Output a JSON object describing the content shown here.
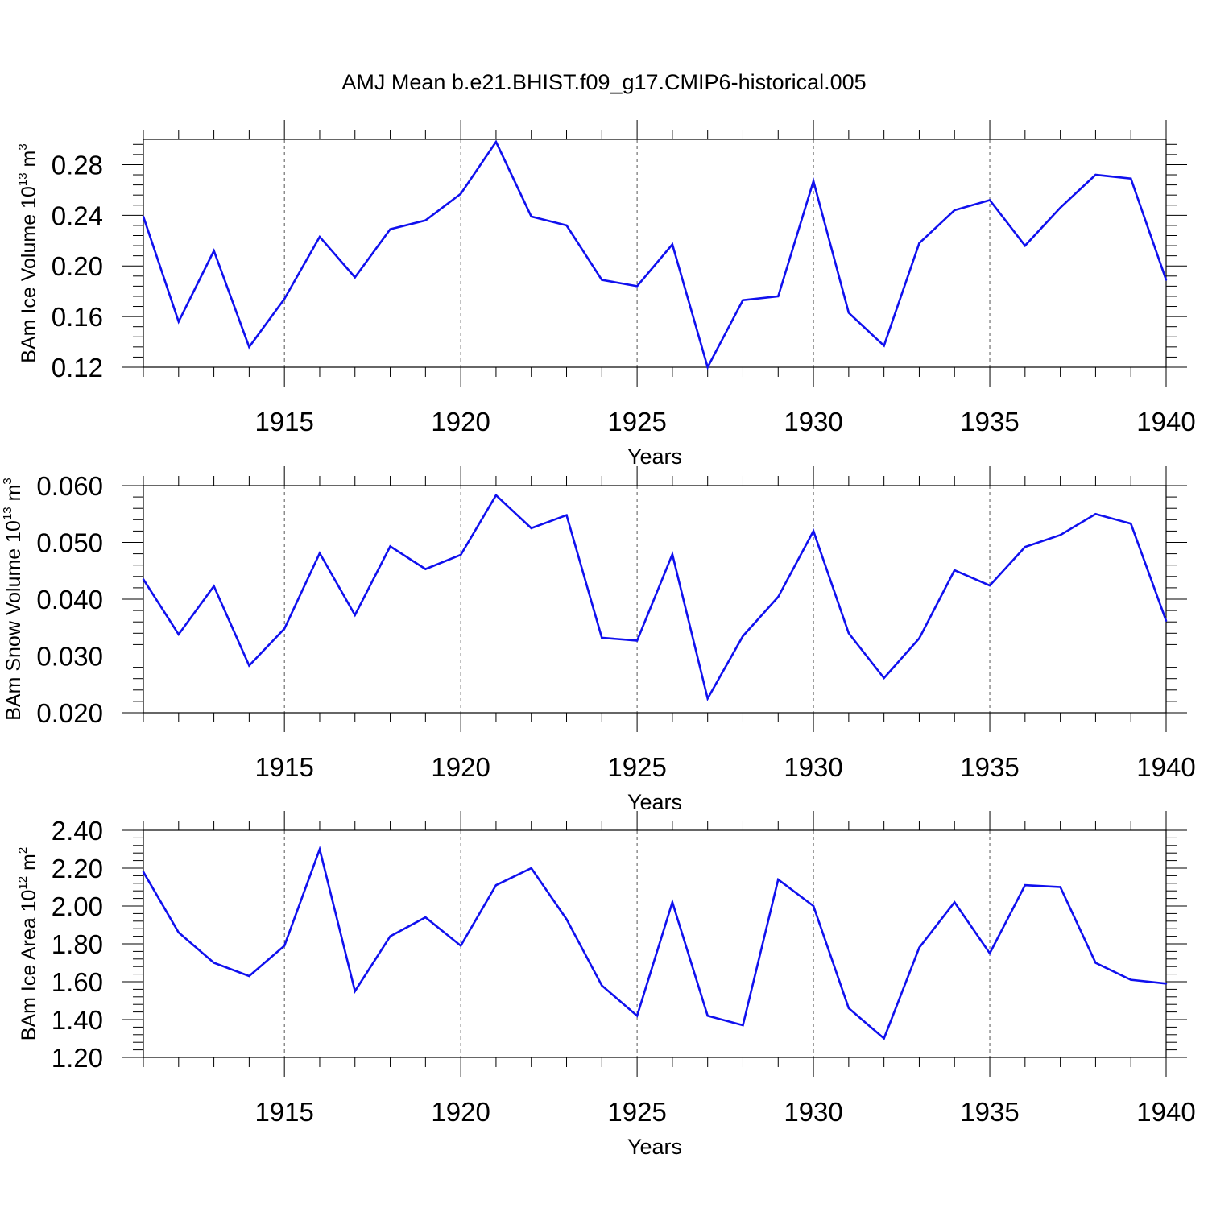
{
  "chart_data": [
    {
      "type": "line",
      "title": "AMJ Mean b.e21.BHIST.f09_g17.CMIP6-historical.005",
      "xlabel": "Years",
      "ylabel": "BAm Ice Volume 10",
      "ylabel_exp": "13",
      "ylabel_unit": " m",
      "ylabel_unit_exp": "3",
      "xlim": [
        1911,
        1940
      ],
      "ylim": [
        0.12,
        0.3
      ],
      "xticks": [
        1915,
        1920,
        1925,
        1930,
        1935,
        1940
      ],
      "xtick_labels": [
        "1915",
        "1920",
        "1925",
        "1930",
        "1935",
        "1940"
      ],
      "yticks": [
        0.12,
        0.16,
        0.2,
        0.24,
        0.28
      ],
      "ytick_labels": [
        "0.12",
        "0.16",
        "0.20",
        "0.24",
        "0.28"
      ],
      "grid": "vertical dashed at major x ticks",
      "line_color": "#1010ee",
      "x": [
        1911,
        1912,
        1913,
        1914,
        1915,
        1916,
        1917,
        1918,
        1919,
        1920,
        1921,
        1922,
        1923,
        1924,
        1925,
        1926,
        1927,
        1928,
        1929,
        1930,
        1931,
        1932,
        1933,
        1934,
        1935,
        1936,
        1937,
        1938,
        1939,
        1940
      ],
      "values": [
        0.239,
        0.156,
        0.212,
        0.136,
        0.174,
        0.223,
        0.191,
        0.229,
        0.236,
        0.257,
        0.298,
        0.239,
        0.232,
        0.189,
        0.184,
        0.217,
        0.12,
        0.173,
        0.176,
        0.267,
        0.163,
        0.137,
        0.218,
        0.244,
        0.252,
        0.216,
        0.246,
        0.272,
        0.269,
        0.189
      ]
    },
    {
      "type": "line",
      "title": "",
      "xlabel": "Years",
      "ylabel": "BAm Snow Volume 10",
      "ylabel_exp": "13",
      "ylabel_unit": " m",
      "ylabel_unit_exp": "3",
      "xlim": [
        1911,
        1940
      ],
      "ylim": [
        0.02,
        0.06
      ],
      "xticks": [
        1915,
        1920,
        1925,
        1930,
        1935,
        1940
      ],
      "xtick_labels": [
        "1915",
        "1920",
        "1925",
        "1930",
        "1935",
        "1940"
      ],
      "yticks": [
        0.02,
        0.03,
        0.04,
        0.05,
        0.06
      ],
      "ytick_labels": [
        "0.020",
        "0.030",
        "0.040",
        "0.050",
        "0.060"
      ],
      "grid": "vertical dashed at major x ticks",
      "line_color": "#1010ee",
      "x": [
        1911,
        1912,
        1913,
        1914,
        1915,
        1916,
        1917,
        1918,
        1919,
        1920,
        1921,
        1922,
        1923,
        1924,
        1925,
        1926,
        1927,
        1928,
        1929,
        1930,
        1931,
        1932,
        1933,
        1934,
        1935,
        1936,
        1937,
        1938,
        1939,
        1940
      ],
      "values": [
        0.0435,
        0.0338,
        0.0423,
        0.0283,
        0.0348,
        0.0481,
        0.0372,
        0.0493,
        0.0453,
        0.0478,
        0.0583,
        0.0525,
        0.0548,
        0.0332,
        0.0327,
        0.0479,
        0.0225,
        0.0335,
        0.0404,
        0.052,
        0.034,
        0.0261,
        0.0331,
        0.0451,
        0.0424,
        0.0492,
        0.0513,
        0.055,
        0.0533,
        0.0362
      ]
    },
    {
      "type": "line",
      "title": "",
      "xlabel": "Years",
      "ylabel": "BAm Ice Area 10",
      "ylabel_exp": "12",
      "ylabel_unit": " m",
      "ylabel_unit_exp": "2",
      "xlim": [
        1911,
        1940
      ],
      "ylim": [
        1.2,
        2.4
      ],
      "xticks": [
        1915,
        1920,
        1925,
        1930,
        1935,
        1940
      ],
      "xtick_labels": [
        "1915",
        "1920",
        "1925",
        "1930",
        "1935",
        "1940"
      ],
      "yticks": [
        1.2,
        1.4,
        1.6,
        1.8,
        2.0,
        2.2,
        2.4
      ],
      "ytick_labels": [
        "1.20",
        "1.40",
        "1.60",
        "1.80",
        "2.00",
        "2.20",
        "2.40"
      ],
      "grid": "vertical dashed at major x ticks",
      "line_color": "#1010ee",
      "x": [
        1911,
        1912,
        1913,
        1914,
        1915,
        1916,
        1917,
        1918,
        1919,
        1920,
        1921,
        1922,
        1923,
        1924,
        1925,
        1926,
        1927,
        1928,
        1929,
        1930,
        1931,
        1932,
        1933,
        1934,
        1935,
        1936,
        1937,
        1938,
        1939,
        1940
      ],
      "values": [
        2.18,
        1.86,
        1.7,
        1.63,
        1.79,
        2.3,
        1.55,
        1.84,
        1.94,
        1.79,
        2.11,
        2.2,
        1.93,
        1.58,
        1.42,
        2.02,
        1.42,
        1.37,
        2.14,
        2.0,
        1.46,
        1.3,
        1.78,
        2.02,
        1.75,
        2.11,
        2.1,
        1.7,
        1.61,
        1.59
      ]
    }
  ]
}
